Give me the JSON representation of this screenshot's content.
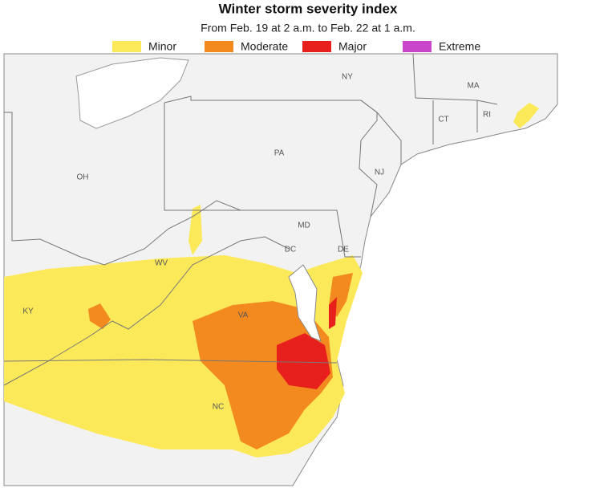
{
  "header": {
    "title": "Winter storm severity index",
    "subtitle": "From Feb. 19 at 2 a.m. to Feb. 22 at 1 a.m."
  },
  "legend": [
    {
      "label": "Minor",
      "color": "#fce95a"
    },
    {
      "label": "Moderate",
      "color": "#f38a1f"
    },
    {
      "label": "Major",
      "color": "#e8201d"
    },
    {
      "label": "Extreme",
      "color": "#c844c8"
    }
  ],
  "state_labels": [
    "NY",
    "MA",
    "CT",
    "RI",
    "PA",
    "NJ",
    "OH",
    "MD",
    "DE",
    "DC",
    "WV",
    "VA",
    "KY",
    "NC"
  ]
}
